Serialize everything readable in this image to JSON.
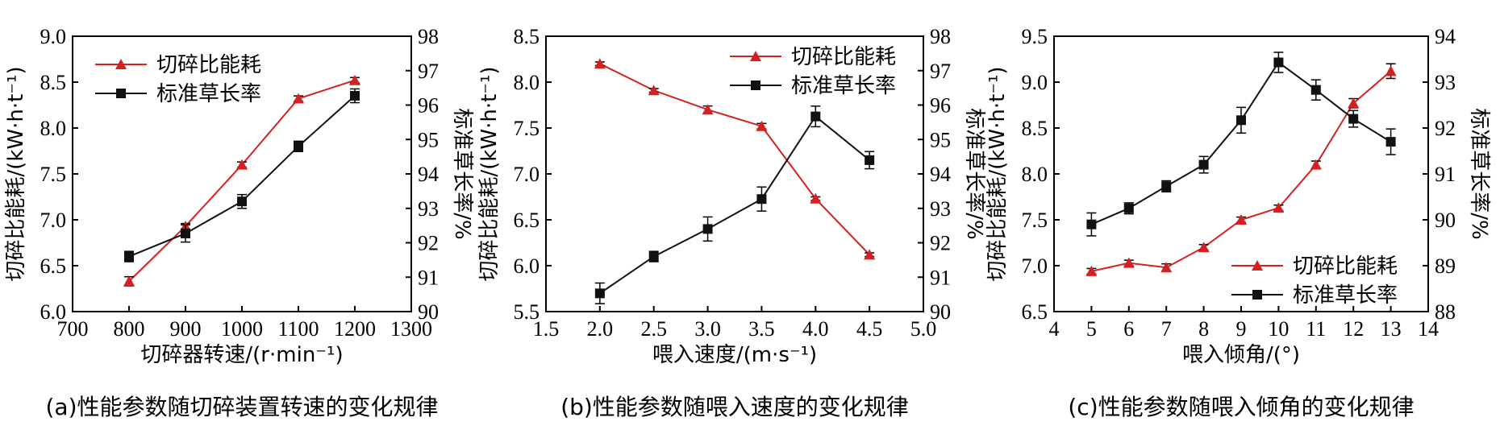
{
  "chart_data": [
    {
      "type": "line",
      "caption": "(a)性能参数随切碎装置转速的变化规律",
      "xlabel": "切碎器转速/(r·min⁻¹)",
      "ylabel": "切碎比能耗/(kW·h·t⁻¹)",
      "y2label": "标准草长率/%",
      "xlim": [
        700,
        1300
      ],
      "ylim": [
        6.0,
        9.0
      ],
      "y2lim": [
        90,
        98
      ],
      "xticks": [
        700,
        800,
        900,
        1000,
        1100,
        1200,
        1300
      ],
      "yticks": [
        "6.0",
        "6.5",
        "7.0",
        "7.5",
        "8.0",
        "8.5",
        "9.0"
      ],
      "y2ticks": [
        "90",
        "91",
        "92",
        "93",
        "94",
        "95",
        "96",
        "97",
        "98"
      ],
      "legend_position": "top-left",
      "series": [
        {
          "name": "切碎比能耗",
          "axis": "left",
          "color": "#d42020",
          "marker": "triangle",
          "x": [
            800,
            900,
            1000,
            1100,
            1200
          ],
          "y": [
            6.33,
            6.93,
            7.6,
            8.32,
            8.52
          ],
          "err": [
            0.05,
            0.03,
            0.03,
            0.03,
            0.03
          ]
        },
        {
          "name": "标准草长率",
          "axis": "right",
          "color": "#111111",
          "marker": "square",
          "x": [
            800,
            900,
            1000,
            1100,
            1200
          ],
          "y": [
            91.6,
            92.27,
            93.2,
            94.8,
            96.27
          ],
          "err": [
            0.15,
            0.25,
            0.2,
            0.15,
            0.2
          ]
        }
      ]
    },
    {
      "type": "line",
      "caption": "(b)性能参数随喂入速度的变化规律",
      "xlabel": "喂入速度/(m·s⁻¹)",
      "ylabel": "切碎比能耗/(kW·h·t⁻¹)",
      "y2label": "标准草长率/%",
      "xlim": [
        1.5,
        5.0
      ],
      "ylim": [
        5.5,
        8.5
      ],
      "y2lim": [
        90,
        98
      ],
      "xticks": [
        "1.5",
        "2.0",
        "2.5",
        "3.0",
        "3.5",
        "4.0",
        "4.5",
        "5.0"
      ],
      "yticks": [
        "5.5",
        "6.0",
        "6.5",
        "7.0",
        "7.5",
        "8.0",
        "8.5"
      ],
      "y2ticks": [
        "90",
        "91",
        "92",
        "93",
        "94",
        "95",
        "96",
        "97",
        "98"
      ],
      "legend_position": "top-right",
      "series": [
        {
          "name": "切碎比能耗",
          "axis": "left",
          "color": "#d42020",
          "marker": "triangle",
          "x": [
            2.0,
            2.5,
            3.0,
            3.5,
            4.0,
            4.5
          ],
          "y": [
            8.2,
            7.91,
            7.7,
            7.52,
            6.73,
            6.12
          ],
          "err": [
            0.02,
            0.02,
            0.04,
            0.03,
            0.02,
            0.02
          ]
        },
        {
          "name": "标准草长率",
          "axis": "right",
          "color": "#111111",
          "marker": "square",
          "x": [
            2.0,
            2.5,
            3.0,
            3.5,
            4.0,
            4.5
          ],
          "y": [
            90.53,
            91.6,
            92.4,
            93.27,
            95.67,
            94.4
          ],
          "err": [
            0.3,
            0.15,
            0.35,
            0.35,
            0.3,
            0.25
          ]
        }
      ]
    },
    {
      "type": "line",
      "caption": "(c)性能参数随喂入倾角的变化规律",
      "xlabel": "喂入倾角/(°)",
      "ylabel": "切碎比能耗/(kW·h·t⁻¹)",
      "y2label": "标准草长率/%",
      "xlim": [
        4,
        14
      ],
      "ylim": [
        6.5,
        9.5
      ],
      "y2lim": [
        88,
        94
      ],
      "xticks": [
        "4",
        "5",
        "6",
        "7",
        "8",
        "9",
        "10",
        "11",
        "12",
        "13",
        "14"
      ],
      "yticks": [
        "6.5",
        "7.0",
        "7.5",
        "8.0",
        "8.5",
        "9.0",
        "9.5"
      ],
      "y2ticks": [
        "88",
        "89",
        "90",
        "91",
        "92",
        "93",
        "94"
      ],
      "legend_position": "bottom-right",
      "series": [
        {
          "name": "切碎比能耗",
          "axis": "left",
          "color": "#d42020",
          "marker": "triangle",
          "x": [
            5,
            6,
            7,
            8,
            9,
            10,
            11,
            12,
            13
          ],
          "y": [
            6.94,
            7.03,
            6.98,
            7.2,
            7.5,
            7.63,
            8.1,
            8.77,
            9.12
          ],
          "err": [
            0.03,
            0.03,
            0.04,
            0.03,
            0.03,
            0.03,
            0.04,
            0.05,
            0.08
          ]
        },
        {
          "name": "标准草长率",
          "axis": "right",
          "color": "#111111",
          "marker": "square",
          "x": [
            5,
            6,
            7,
            8,
            9,
            10,
            11,
            12,
            13
          ],
          "y": [
            89.9,
            90.25,
            90.73,
            91.2,
            92.17,
            93.43,
            92.83,
            92.2,
            91.7
          ],
          "err": [
            0.25,
            0.12,
            0.12,
            0.18,
            0.28,
            0.22,
            0.22,
            0.18,
            0.28
          ]
        }
      ]
    }
  ]
}
